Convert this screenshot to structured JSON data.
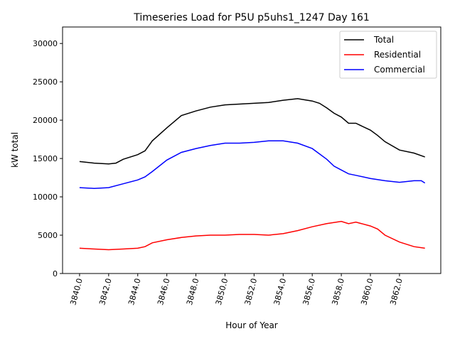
{
  "chart_data": {
    "type": "line",
    "title": "Timeseries Load for P5U p5uhs1_1247  Day 161",
    "xlabel": "Hour of Year",
    "ylabel": "kW total",
    "xlim": [
      3838.83,
      3864.84
    ],
    "ylim": [
      0,
      32150
    ],
    "xticks": [
      3840,
      3842,
      3844,
      3846,
      3848,
      3850,
      3852,
      3854,
      3856,
      3858,
      3860,
      3862
    ],
    "xtick_labels": [
      "3840.0",
      "3842.0",
      "3844.0",
      "3846.0",
      "3848.0",
      "3850.0",
      "3852.0",
      "3854.0",
      "3856.0",
      "3858.0",
      "3860.0",
      "3862.0"
    ],
    "yticks": [
      0,
      5000,
      10000,
      15000,
      20000,
      25000,
      30000
    ],
    "ytick_labels": [
      "0",
      "5000",
      "10000",
      "15000",
      "20000",
      "25000",
      "30000"
    ],
    "legend_position": "top-right",
    "grid": false,
    "series": [
      {
        "name": "Total",
        "color": "#000000",
        "x": [
          3840,
          3841,
          3842,
          3842.5,
          3843,
          3844,
          3844.5,
          3845,
          3846,
          3846.5,
          3847,
          3848,
          3849,
          3850,
          3851,
          3852,
          3853,
          3854,
          3855,
          3856,
          3856.5,
          3857,
          3857.5,
          3858,
          3858.5,
          3859,
          3860,
          3860.5,
          3861,
          3862,
          3863,
          3863.75
        ],
        "y": [
          14600,
          14400,
          14300,
          14400,
          14900,
          15500,
          16000,
          17300,
          19000,
          19800,
          20600,
          21200,
          21700,
          22000,
          22100,
          22200,
          22300,
          22600,
          22800,
          22500,
          22200,
          21600,
          20900,
          20400,
          19600,
          19600,
          18700,
          18000,
          17200,
          16100,
          15700,
          15200
        ]
      },
      {
        "name": "Residential",
        "color": "#ff0000",
        "x": [
          3840,
          3841,
          3842,
          3843,
          3844,
          3844.5,
          3845,
          3846,
          3847,
          3848,
          3849,
          3850,
          3851,
          3852,
          3853,
          3854,
          3855,
          3856,
          3857,
          3858,
          3858.5,
          3859,
          3860,
          3860.5,
          3861,
          3862,
          3863,
          3863.75
        ],
        "y": [
          3300,
          3200,
          3100,
          3200,
          3300,
          3500,
          4000,
          4400,
          4700,
          4900,
          5000,
          5000,
          5100,
          5100,
          5000,
          5200,
          5600,
          6100,
          6500,
          6800,
          6500,
          6700,
          6200,
          5800,
          5000,
          4100,
          3500,
          3300
        ]
      },
      {
        "name": "Commercial",
        "color": "#0000ff",
        "x": [
          3840,
          3841,
          3842,
          3843,
          3844,
          3844.5,
          3845,
          3846,
          3847,
          3848,
          3849,
          3850,
          3851,
          3852,
          3853,
          3854,
          3855,
          3856,
          3857,
          3857.5,
          3858,
          3858.5,
          3859,
          3860,
          3861,
          3862,
          3863,
          3863.5,
          3863.75
        ],
        "y": [
          11200,
          11100,
          11200,
          11700,
          12200,
          12600,
          13300,
          14800,
          15800,
          16300,
          16700,
          17000,
          17000,
          17100,
          17300,
          17300,
          17000,
          16300,
          14900,
          14000,
          13500,
          13000,
          12800,
          12400,
          12100,
          11900,
          12100,
          12100,
          11800
        ]
      }
    ]
  }
}
